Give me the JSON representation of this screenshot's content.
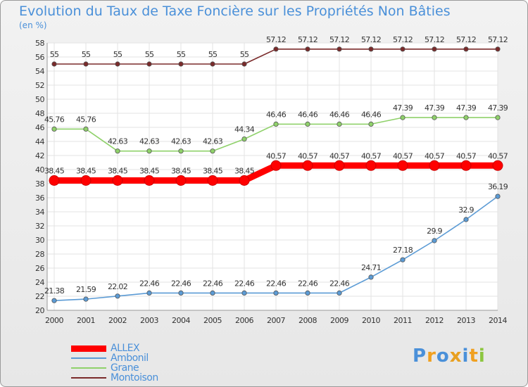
{
  "title": "Evolution du Taux de Taxe Foncière sur les Propriétés Non Bâties",
  "unit": "(en %)",
  "logo": {
    "text": "Proxiti",
    "letters": [
      {
        "ch": "P",
        "color": "#4a90d9"
      },
      {
        "ch": "r",
        "color": "#f0a020"
      },
      {
        "ch": "o",
        "color": "#4a90d9"
      },
      {
        "ch": "x",
        "color": "#e8a020"
      },
      {
        "ch": "i",
        "color": "#4a90d9"
      },
      {
        "ch": "t",
        "color": "#f0a020"
      },
      {
        "ch": "i",
        "color": "#8cc63f"
      }
    ]
  },
  "chart_data": {
    "type": "line",
    "title": "Evolution du Taux de Taxe Foncière sur les Propriétés Non Bâties",
    "ylabel": "(en %)",
    "xlabel": "",
    "ylim": [
      20,
      58
    ],
    "yticks": [
      20,
      22,
      24,
      26,
      28,
      30,
      32,
      34,
      36,
      38,
      40,
      42,
      44,
      46,
      48,
      50,
      52,
      54,
      56,
      58
    ],
    "grid": true,
    "legend_position": "bottom-left",
    "x": [
      "2000",
      "2001",
      "2002",
      "2003",
      "2004",
      "2005",
      "2006",
      "2007",
      "2008",
      "2009",
      "2010",
      "2011",
      "2012",
      "2013",
      "2014"
    ],
    "series": [
      {
        "name": "ALLEX",
        "color": "#ff0000",
        "width": "thick",
        "values": [
          38.45,
          38.45,
          38.45,
          38.45,
          38.45,
          38.45,
          38.45,
          40.57,
          40.57,
          40.57,
          40.57,
          40.57,
          40.57,
          40.57,
          40.57
        ],
        "labels": [
          "38.45",
          "38.45",
          "38.45",
          "38.45",
          "38.45",
          "38.45",
          "38.45",
          "40.57",
          "40.57",
          "40.57",
          "40.57",
          "40.57",
          "40.57",
          "40.57",
          "40.57"
        ]
      },
      {
        "name": "Ambonil",
        "color": "#5b9bd5",
        "width": "thin",
        "values": [
          21.38,
          21.59,
          22.02,
          22.46,
          22.46,
          22.46,
          22.46,
          22.46,
          22.46,
          22.46,
          24.71,
          27.18,
          29.9,
          32.9,
          36.19
        ],
        "labels": [
          "21.38",
          "21.59",
          "22.02",
          "22.46",
          "22.46",
          "22.46",
          "22.46",
          "22.46",
          "22.46",
          "22.46",
          "24.71",
          "27.18",
          "29.9",
          "32.9",
          "36.19"
        ]
      },
      {
        "name": "Grane",
        "color": "#8fd16a",
        "width": "thin",
        "values": [
          45.76,
          45.76,
          42.63,
          42.63,
          42.63,
          42.63,
          44.34,
          46.46,
          46.46,
          46.46,
          46.46,
          47.39,
          47.39,
          47.39,
          47.39
        ],
        "labels": [
          "45.76",
          "45.76",
          "42.63",
          "42.63",
          "42.63",
          "42.63",
          "44.34",
          "46.46",
          "46.46",
          "46.46",
          "46.46",
          "47.39",
          "47.39",
          "47.39",
          "47.39"
        ]
      },
      {
        "name": "Montoison",
        "color": "#7a2a2a",
        "width": "thin",
        "values": [
          55,
          55,
          55,
          55,
          55,
          55,
          55,
          57.12,
          57.12,
          57.12,
          57.12,
          57.12,
          57.12,
          57.12,
          57.12
        ],
        "labels": [
          "55",
          "55",
          "55",
          "55",
          "55",
          "55",
          "55",
          "57.12",
          "57.12",
          "57.12",
          "57.12",
          "57.12",
          "57.12",
          "57.12",
          "57.12"
        ]
      }
    ]
  }
}
